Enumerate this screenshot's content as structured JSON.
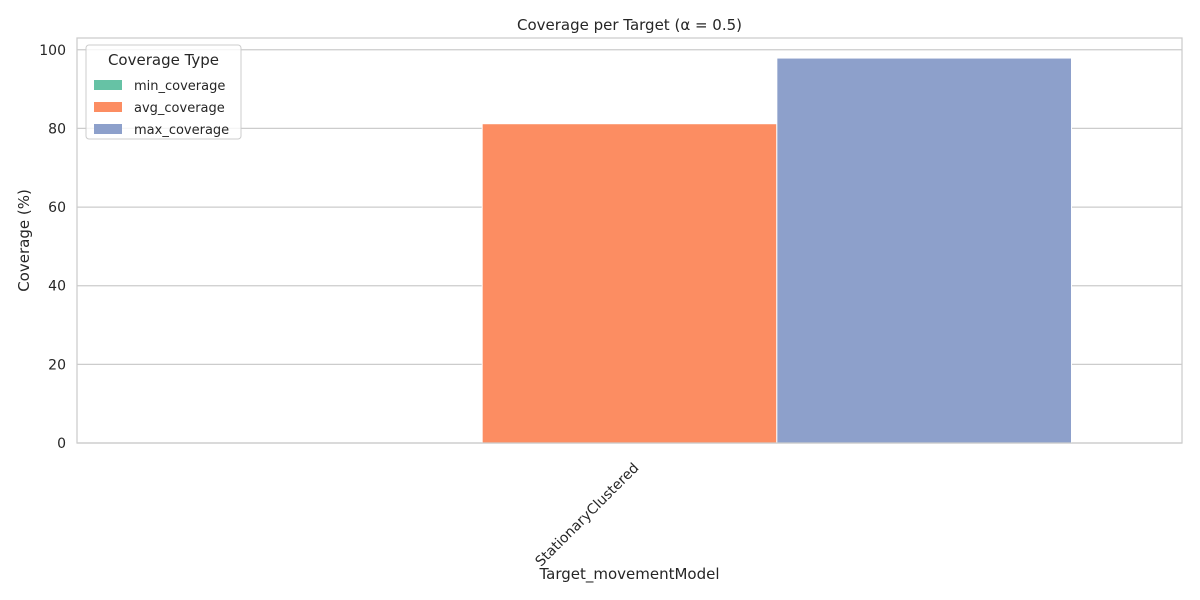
{
  "chart_data": {
    "type": "bar",
    "title": "Coverage per Target (α = 0.5)",
    "xlabel": "Target_movementModel",
    "ylabel": "Coverage (%)",
    "categories": [
      "StationaryClustered"
    ],
    "series": [
      {
        "name": "min_coverage",
        "color": "#66c2a5",
        "values": [
          0
        ]
      },
      {
        "name": "avg_coverage",
        "color": "#fc8d62",
        "values": [
          81.2
        ]
      },
      {
        "name": "max_coverage",
        "color": "#8da0cb",
        "values": [
          97.9
        ]
      }
    ],
    "ylim": [
      0,
      103
    ],
    "yticks": [
      0,
      20,
      40,
      60,
      80,
      100
    ],
    "grid": true,
    "legend": {
      "title": "Coverage Type",
      "placement": "top-left"
    }
  }
}
